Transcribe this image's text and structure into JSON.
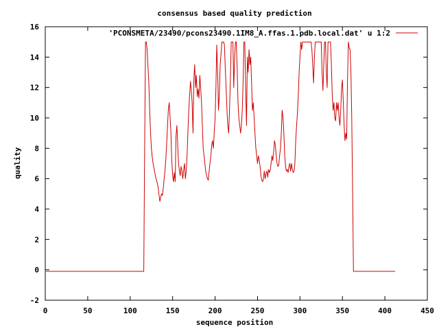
{
  "chart_data": {
    "type": "line",
    "title": "consensus based quality prediction",
    "xlabel": "sequence position",
    "ylabel": "quality",
    "xlim": [
      0,
      450
    ],
    "ylim": [
      -2,
      16
    ],
    "xticks": [
      0,
      50,
      100,
      150,
      200,
      250,
      300,
      350,
      400,
      450
    ],
    "yticks": [
      -2,
      0,
      2,
      4,
      6,
      8,
      10,
      12,
      14,
      16
    ],
    "grid": false,
    "legend_position": "top-right",
    "series": [
      {
        "name": "'PCONSMETA/23490/pcons23490.1IM8_A.ffas.1.pdb.local.dat' u 1:2",
        "color": "#cc0000",
        "points": [
          [
            1,
            -0.1
          ],
          [
            116,
            -0.1
          ],
          [
            117,
            7.5
          ],
          [
            118,
            15.0
          ],
          [
            119,
            15.0
          ],
          [
            120,
            14.5
          ],
          [
            121,
            13.3
          ],
          [
            122,
            12.3
          ],
          [
            123,
            10.5
          ],
          [
            124,
            9.0
          ],
          [
            125,
            8.0
          ],
          [
            126,
            7.4
          ],
          [
            127,
            7.0
          ],
          [
            128,
            6.7
          ],
          [
            129,
            6.4
          ],
          [
            130,
            6.1
          ],
          [
            131,
            5.9
          ],
          [
            132,
            5.7
          ],
          [
            133,
            5.4
          ],
          [
            134,
            4.9
          ],
          [
            135,
            4.5
          ],
          [
            136,
            4.8
          ],
          [
            137,
            5.0
          ],
          [
            138,
            4.9
          ],
          [
            139,
            5.4
          ],
          [
            140,
            6.0
          ],
          [
            141,
            6.5
          ],
          [
            142,
            7.3
          ],
          [
            143,
            8.3
          ],
          [
            144,
            9.5
          ],
          [
            145,
            10.6
          ],
          [
            146,
            11.0
          ],
          [
            147,
            10.0
          ],
          [
            148,
            9.0
          ],
          [
            149,
            7.2
          ],
          [
            150,
            6.2
          ],
          [
            151,
            5.8
          ],
          [
            152,
            6.4
          ],
          [
            153,
            5.8
          ],
          [
            154,
            8.8
          ],
          [
            155,
            9.5
          ],
          [
            156,
            8.2
          ],
          [
            157,
            7.0
          ],
          [
            158,
            6.5
          ],
          [
            159,
            6.2
          ],
          [
            160,
            6.8
          ],
          [
            161,
            6.5
          ],
          [
            162,
            6.0
          ],
          [
            163,
            6.6
          ],
          [
            164,
            7.0
          ],
          [
            165,
            6.0
          ],
          [
            166,
            6.5
          ],
          [
            167,
            7.5
          ],
          [
            168,
            9.0
          ],
          [
            169,
            10.5
          ],
          [
            170,
            11.5
          ],
          [
            171,
            12.4
          ],
          [
            172,
            11.8
          ],
          [
            173,
            11.0
          ],
          [
            174,
            9.0
          ],
          [
            175,
            12.5
          ],
          [
            176,
            13.5
          ],
          [
            177,
            12.0
          ],
          [
            178,
            12.8
          ],
          [
            179,
            11.4
          ],
          [
            180,
            11.9
          ],
          [
            181,
            11.3
          ],
          [
            182,
            12.8
          ],
          [
            183,
            12.0
          ],
          [
            184,
            11.0
          ],
          [
            185,
            9.5
          ],
          [
            186,
            8.0
          ],
          [
            187,
            7.5
          ],
          [
            188,
            7.0
          ],
          [
            189,
            6.5
          ],
          [
            190,
            6.2
          ],
          [
            191,
            6.0
          ],
          [
            192,
            5.9
          ],
          [
            193,
            6.5
          ],
          [
            194,
            7.0
          ],
          [
            195,
            7.5
          ],
          [
            196,
            8.2
          ],
          [
            197,
            8.5
          ],
          [
            198,
            8.0
          ],
          [
            199,
            9.0
          ],
          [
            200,
            10.0
          ],
          [
            201,
            12.0
          ],
          [
            202,
            14.8
          ],
          [
            203,
            13.0
          ],
          [
            204,
            10.5
          ],
          [
            205,
            11.5
          ],
          [
            206,
            13.5
          ],
          [
            207,
            14.2
          ],
          [
            208,
            15.0
          ],
          [
            209,
            15.0
          ],
          [
            210,
            15.0
          ],
          [
            211,
            14.8
          ],
          [
            212,
            13.3
          ],
          [
            213,
            12.0
          ],
          [
            214,
            10.5
          ],
          [
            215,
            9.5
          ],
          [
            216,
            9.0
          ],
          [
            217,
            10.5
          ],
          [
            218,
            12.5
          ],
          [
            219,
            15.0
          ],
          [
            220,
            15.0
          ],
          [
            221,
            15.0
          ],
          [
            222,
            12.0
          ],
          [
            223,
            14.0
          ],
          [
            224,
            15.0
          ],
          [
            225,
            15.0
          ],
          [
            226,
            13.3
          ],
          [
            227,
            11.0
          ],
          [
            228,
            10.0
          ],
          [
            229,
            9.5
          ],
          [
            230,
            9.0
          ],
          [
            231,
            9.5
          ],
          [
            232,
            10.5
          ],
          [
            233,
            12.3
          ],
          [
            234,
            15.0
          ],
          [
            235,
            15.0
          ],
          [
            236,
            12.0
          ],
          [
            237,
            9.5
          ],
          [
            238,
            14.0
          ],
          [
            239,
            13.0
          ],
          [
            240,
            14.5
          ],
          [
            241,
            13.5
          ],
          [
            242,
            14.0
          ],
          [
            243,
            12.3
          ],
          [
            244,
            10.5
          ],
          [
            245,
            11.0
          ],
          [
            246,
            10.0
          ],
          [
            247,
            9.0
          ],
          [
            248,
            8.0
          ],
          [
            249,
            7.5
          ],
          [
            250,
            7.0
          ],
          [
            251,
            7.5
          ],
          [
            252,
            7.2
          ],
          [
            253,
            6.8
          ],
          [
            254,
            6.2
          ],
          [
            255,
            5.9
          ],
          [
            256,
            5.8
          ],
          [
            257,
            6.0
          ],
          [
            258,
            6.5
          ],
          [
            259,
            6.0
          ],
          [
            260,
            6.3
          ],
          [
            261,
            6.5
          ],
          [
            262,
            6.1
          ],
          [
            263,
            6.6
          ],
          [
            264,
            6.4
          ],
          [
            265,
            6.6
          ],
          [
            266,
            7.0
          ],
          [
            267,
            7.5
          ],
          [
            268,
            7.2
          ],
          [
            269,
            7.8
          ],
          [
            270,
            8.5
          ],
          [
            271,
            8.2
          ],
          [
            272,
            7.5
          ],
          [
            273,
            7.0
          ],
          [
            274,
            6.8
          ],
          [
            275,
            6.9
          ],
          [
            276,
            7.5
          ],
          [
            277,
            8.0
          ],
          [
            278,
            9.0
          ],
          [
            279,
            10.5
          ],
          [
            280,
            10.0
          ],
          [
            281,
            9.0
          ],
          [
            282,
            7.5
          ],
          [
            283,
            6.8
          ],
          [
            284,
            6.5
          ],
          [
            285,
            6.6
          ],
          [
            286,
            6.4
          ],
          [
            287,
            6.8
          ],
          [
            288,
            7.0
          ],
          [
            289,
            6.5
          ],
          [
            290,
            7.0
          ],
          [
            291,
            6.6
          ],
          [
            292,
            6.4
          ],
          [
            293,
            6.5
          ],
          [
            294,
            7.0
          ],
          [
            295,
            8.5
          ],
          [
            296,
            9.5
          ],
          [
            297,
            10.3
          ],
          [
            298,
            11.5
          ],
          [
            299,
            13.0
          ],
          [
            300,
            14.0
          ],
          [
            301,
            15.0
          ],
          [
            302,
            14.5
          ],
          [
            303,
            15.0
          ],
          [
            304,
            15.0
          ],
          [
            305,
            15.0
          ],
          [
            306,
            15.0
          ],
          [
            307,
            15.0
          ],
          [
            308,
            15.0
          ],
          [
            309,
            15.0
          ],
          [
            310,
            15.0
          ],
          [
            311,
            15.0
          ],
          [
            312,
            15.0
          ],
          [
            313,
            15.0
          ],
          [
            314,
            14.5
          ],
          [
            315,
            13.5
          ],
          [
            316,
            12.3
          ],
          [
            317,
            14.0
          ],
          [
            318,
            15.0
          ],
          [
            319,
            15.0
          ],
          [
            320,
            15.0
          ],
          [
            321,
            15.0
          ],
          [
            322,
            15.0
          ],
          [
            323,
            15.0
          ],
          [
            324,
            15.0
          ],
          [
            325,
            15.0
          ],
          [
            326,
            13.0
          ],
          [
            327,
            11.8
          ],
          [
            328,
            13.5
          ],
          [
            329,
            15.0
          ],
          [
            330,
            15.0
          ],
          [
            331,
            13.0
          ],
          [
            332,
            12.0
          ],
          [
            333,
            15.0
          ],
          [
            334,
            15.0
          ],
          [
            335,
            15.0
          ],
          [
            336,
            15.0
          ],
          [
            337,
            13.5
          ],
          [
            338,
            11.5
          ],
          [
            339,
            10.5
          ],
          [
            340,
            11.0
          ],
          [
            341,
            10.0
          ],
          [
            342,
            9.8
          ],
          [
            343,
            11.0
          ],
          [
            344,
            10.5
          ],
          [
            345,
            11.0
          ],
          [
            346,
            10.0
          ],
          [
            347,
            9.5
          ],
          [
            348,
            10.5
          ],
          [
            349,
            12.0
          ],
          [
            350,
            12.5
          ],
          [
            351,
            11.0
          ],
          [
            352,
            9.5
          ],
          [
            353,
            8.5
          ],
          [
            354,
            9.0
          ],
          [
            355,
            8.6
          ],
          [
            356,
            12.5
          ],
          [
            357,
            15.0
          ],
          [
            358,
            14.6
          ],
          [
            359,
            14.5
          ],
          [
            360,
            13.0
          ],
          [
            361,
            10.0
          ],
          [
            362,
            5.0
          ],
          [
            363,
            -0.1
          ],
          [
            412,
            -0.1
          ]
        ]
      }
    ]
  }
}
